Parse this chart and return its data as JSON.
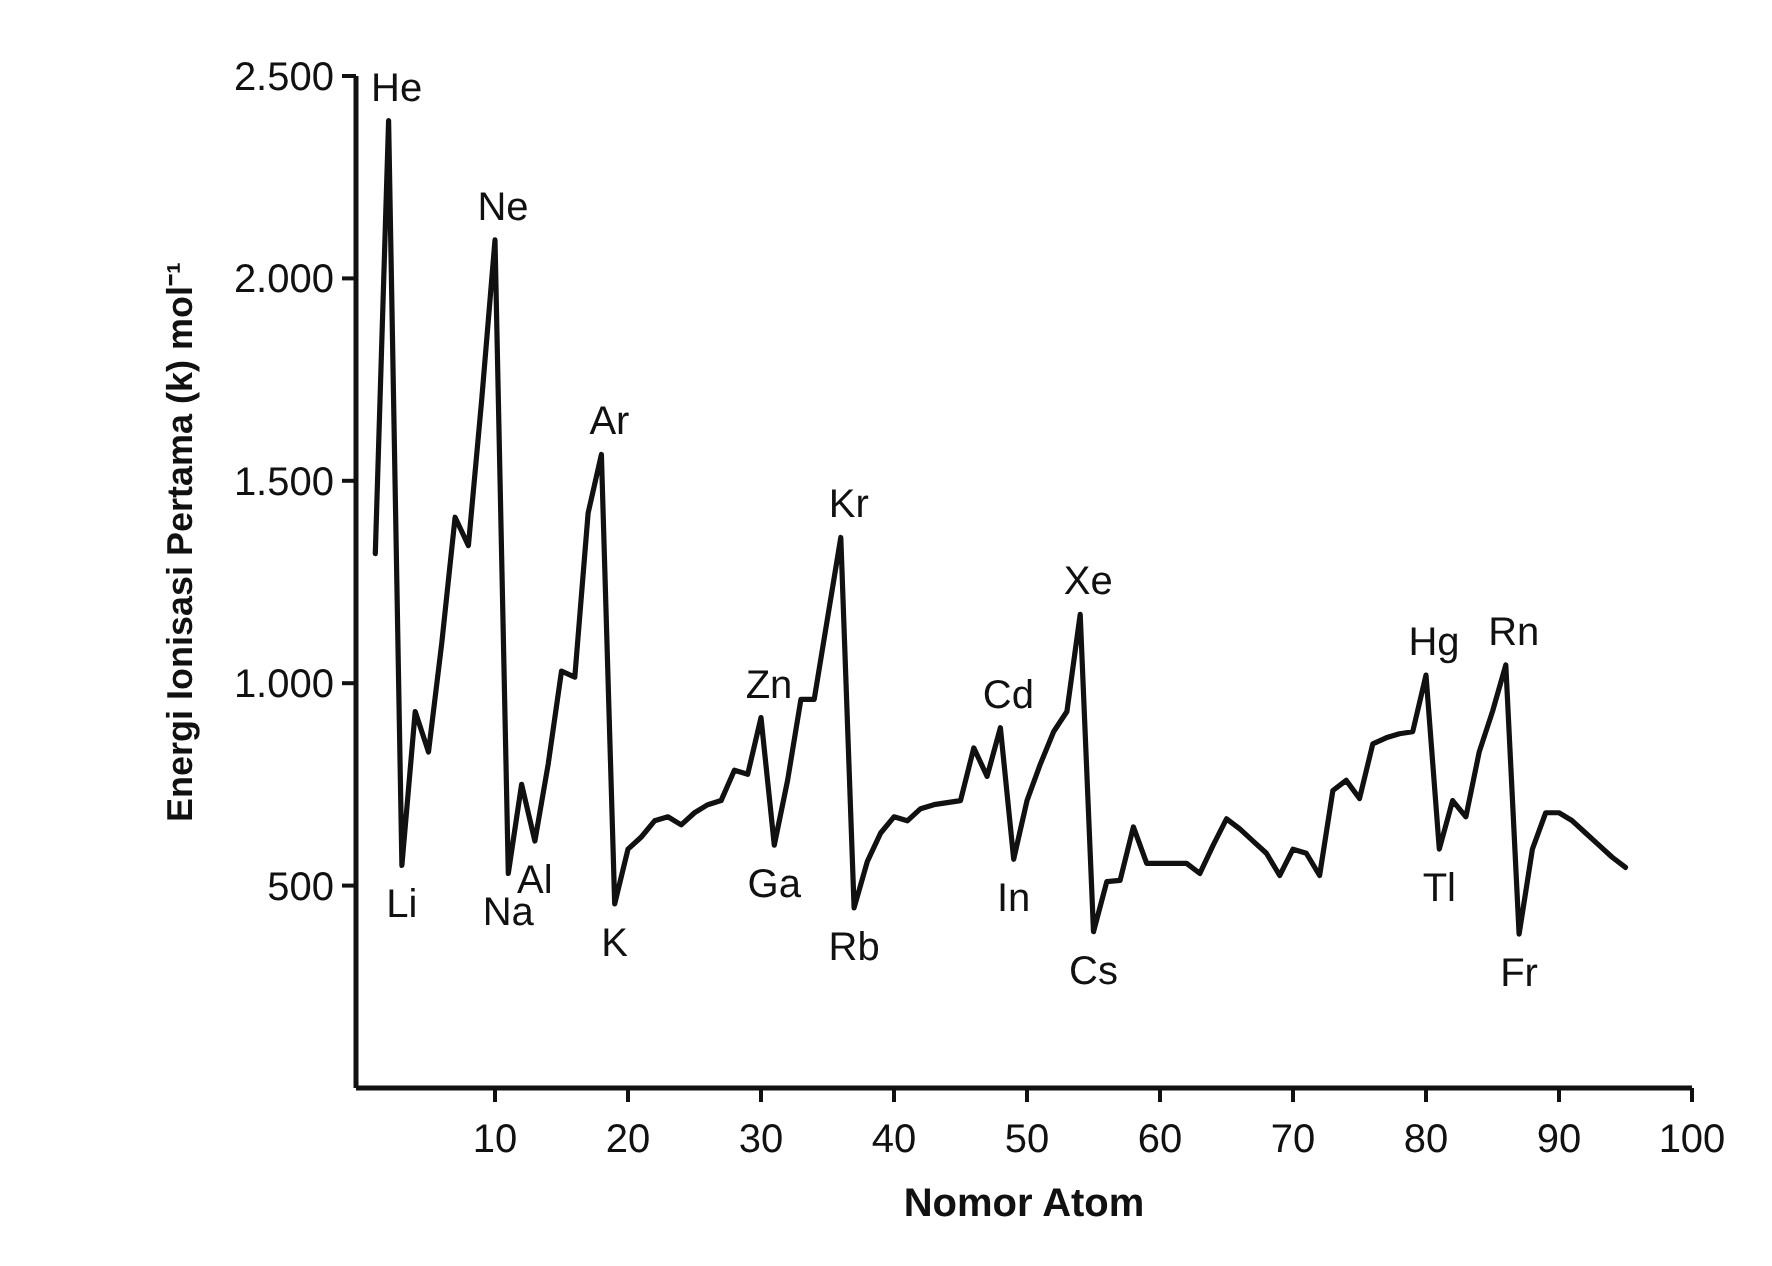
{
  "chart_data": {
    "type": "line",
    "xlabel": "Nomor Atom",
    "ylabel": "Energi Ionisasi Pertama (k) mol⁻¹",
    "xlim": [
      0,
      100
    ],
    "xticks": [
      10,
      20,
      30,
      40,
      50,
      60,
      70,
      80,
      90,
      100
    ],
    "ylim": [
      0,
      2500
    ],
    "yticks": [
      500,
      {
        "value": 1000,
        "label": "1.000"
      },
      {
        "value": 1500,
        "label": "1.500"
      },
      {
        "value": 2000,
        "label": "2.000"
      },
      {
        "value": 2500,
        "label": "2.500"
      }
    ],
    "grid": false,
    "marker": "none",
    "line_style": "solid",
    "series": [
      {
        "color": "#111111",
        "x": [
          1,
          2,
          3,
          4,
          5,
          6,
          7,
          8,
          9,
          10,
          11,
          12,
          13,
          14,
          15,
          16,
          17,
          18,
          19,
          20,
          21,
          22,
          23,
          24,
          25,
          26,
          27,
          28,
          29,
          30,
          31,
          32,
          33,
          34,
          35,
          36,
          37,
          38,
          39,
          40,
          41,
          42,
          43,
          44,
          45,
          46,
          47,
          48,
          49,
          50,
          51,
          52,
          53,
          54,
          55,
          56,
          57,
          58,
          59,
          60,
          61,
          62,
          63,
          64,
          65,
          66,
          67,
          68,
          69,
          70,
          71,
          72,
          73,
          74,
          75,
          76,
          77,
          78,
          79,
          80,
          81,
          82,
          83,
          84,
          85,
          86,
          87,
          88,
          89,
          90,
          91,
          92,
          93,
          94,
          95
        ],
        "values": [
          1320,
          2390,
          550,
          930,
          830,
          1100,
          1410,
          1340,
          1700,
          2095,
          530,
          750,
          610,
          800,
          1030,
          1015,
          1420,
          1565,
          455,
          590,
          620,
          660,
          670,
          650,
          680,
          700,
          710,
          785,
          775,
          915,
          600,
          760,
          960,
          960,
          1160,
          1360,
          445,
          560,
          630,
          670,
          660,
          690,
          700,
          705,
          710,
          840,
          770,
          890,
          565,
          710,
          800,
          880,
          930,
          1170,
          386,
          510,
          513,
          645,
          555,
          555,
          555,
          555,
          530,
          600,
          665,
          640,
          610,
          580,
          525,
          590,
          580,
          525,
          735,
          760,
          715,
          850,
          865,
          875,
          880,
          1020,
          590,
          710,
          670,
          830,
          930,
          1045,
          380,
          590,
          680,
          680,
          660,
          630,
          600,
          570,
          545
        ]
      }
    ],
    "annotations": [
      {
        "text": "He",
        "x": 2,
        "y": 2390
      },
      {
        "text": "Li",
        "x": 3,
        "y": 550
      },
      {
        "text": "Ne",
        "x": 10,
        "y": 2095
      },
      {
        "text": "Na",
        "x": 11,
        "y": 530
      },
      {
        "text": "Al",
        "x": 13,
        "y": 610
      },
      {
        "text": "Ar",
        "x": 18,
        "y": 1565
      },
      {
        "text": "K",
        "x": 19,
        "y": 455
      },
      {
        "text": "Zn",
        "x": 30,
        "y": 915
      },
      {
        "text": "Ga",
        "x": 31,
        "y": 600
      },
      {
        "text": "Kr",
        "x": 36,
        "y": 1360
      },
      {
        "text": "Rb",
        "x": 37,
        "y": 445
      },
      {
        "text": "Cd",
        "x": 48,
        "y": 890
      },
      {
        "text": "In",
        "x": 49,
        "y": 565
      },
      {
        "text": "Xe",
        "x": 54,
        "y": 1170
      },
      {
        "text": "Cs",
        "x": 55,
        "y": 386
      },
      {
        "text": "Hg",
        "x": 80,
        "y": 1020
      },
      {
        "text": "Tl",
        "x": 81,
        "y": 590
      },
      {
        "text": "Rn",
        "x": 86,
        "y": 1045
      },
      {
        "text": "Fr",
        "x": 87,
        "y": 380
      }
    ]
  }
}
